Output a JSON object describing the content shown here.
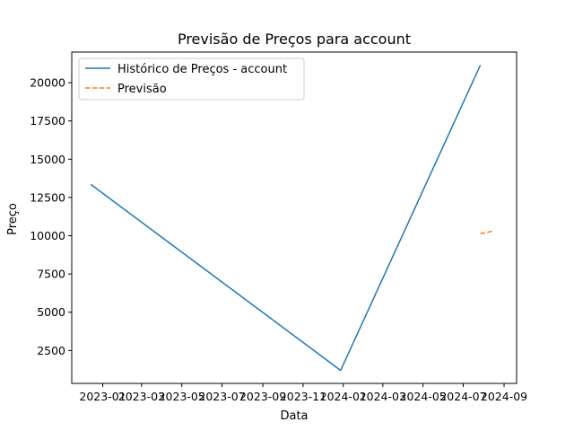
{
  "chart_data": {
    "type": "line",
    "title": "Previsão de Preços para account",
    "xlabel": "Data",
    "ylabel": "Preço",
    "x_axis": "date",
    "xlim": [
      "2022-11-15",
      "2024-09-20"
    ],
    "ylim": [
      350,
      22000
    ],
    "x_ticks": [
      "2023-01",
      "2023-03",
      "2023-05",
      "2023-07",
      "2023-09",
      "2023-11",
      "2024-01",
      "2024-03",
      "2024-05",
      "2024-07",
      "2024-09"
    ],
    "y_ticks": [
      2500,
      5000,
      7500,
      10000,
      12500,
      15000,
      17500,
      20000
    ],
    "grid": false,
    "legend_position": "upper-left",
    "series": [
      {
        "name": "Histórico de Preços - account",
        "style": "solid",
        "color": "#1f77b4",
        "points": [
          {
            "x": "2022-12-14",
            "y": 13350
          },
          {
            "x": "2023-12-28",
            "y": 1200
          },
          {
            "x": "2024-07-27",
            "y": 21150
          }
        ]
      },
      {
        "name": "Previsão",
        "style": "dashed",
        "color": "#ff7f0e",
        "points": [
          {
            "x": "2024-07-27",
            "y": 10150
          },
          {
            "x": "2024-08-05",
            "y": 10200
          },
          {
            "x": "2024-08-14",
            "y": 10300
          }
        ]
      }
    ]
  }
}
